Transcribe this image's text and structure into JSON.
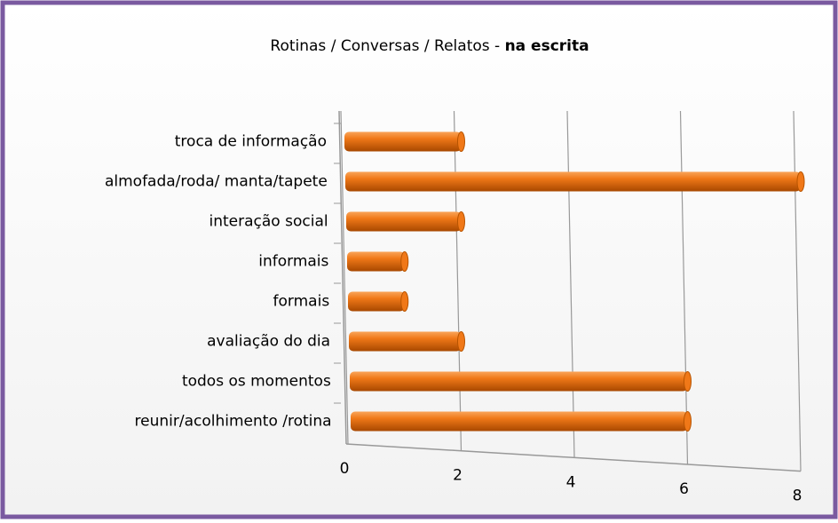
{
  "chart_data": {
    "type": "bar",
    "orientation": "horizontal",
    "title": [
      "Rotinas / Conversas / Relatos - ",
      "na escrita"
    ],
    "categories": [
      "troca de informação",
      "almofada/roda/ manta/tapete",
      "interação social",
      "informais",
      "formais",
      "avaliação do dia",
      "todos os momentos",
      "reunir/acolhimento /rotina"
    ],
    "values": [
      2,
      8,
      2,
      1,
      1,
      2,
      6,
      6
    ],
    "color": "#f07818",
    "xlim": [
      0,
      8
    ],
    "xticks": [
      0,
      2,
      4,
      6,
      8
    ],
    "grid": true
  }
}
